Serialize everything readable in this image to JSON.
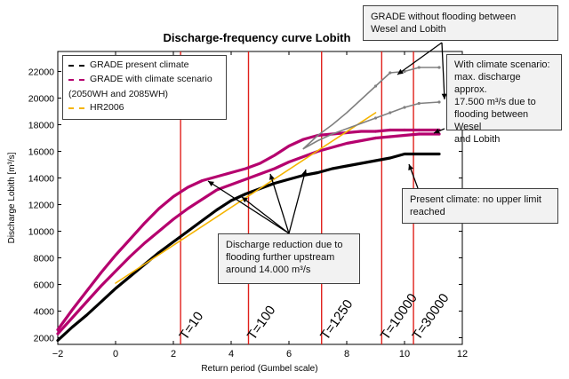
{
  "chart_data": {
    "type": "line",
    "title": "Discharge-frequency curve Lobith",
    "xlabel": "Return period (Gumbel scale)",
    "ylabel": "Discharge Lobith [m³/s]",
    "xlim": [
      -2,
      12
    ],
    "ylim": [
      1500,
      23500
    ],
    "xticks": [
      -2,
      0,
      2,
      4,
      6,
      8,
      10,
      12
    ],
    "xtick_labels": [
      "−2",
      "0",
      "2",
      "4",
      "6",
      "8",
      "10",
      "12"
    ],
    "yticks": [
      2000,
      4000,
      6000,
      8000,
      10000,
      12000,
      14000,
      16000,
      18000,
      20000,
      22000
    ],
    "grid": false,
    "legend_position": "top-left",
    "series": [
      {
        "name": "GRADE present climate",
        "color": "#000000",
        "dashed": false,
        "x": [
          -2,
          -1.5,
          -1,
          -0.5,
          0,
          0.5,
          1,
          1.5,
          2,
          2.5,
          3,
          3.5,
          4,
          4.5,
          5,
          5.5,
          6,
          6.5,
          7,
          7.5,
          8,
          8.5,
          9,
          9.5,
          10,
          10.5,
          11.2
        ],
        "y": [
          1800,
          2800,
          3700,
          4700,
          5700,
          6600,
          7500,
          8400,
          9200,
          10000,
          10800,
          11600,
          12300,
          12800,
          13200,
          13600,
          13900,
          14200,
          14400,
          14700,
          14900,
          15100,
          15300,
          15500,
          15800,
          15800,
          15800
        ]
      },
      {
        "name": "GRADE with climate scenario (2050WH and 2085WH)",
        "color": "#b5006e",
        "dashed": false,
        "x": [
          -2,
          -1.5,
          -1,
          -0.5,
          0,
          0.5,
          1,
          1.5,
          2,
          2.5,
          3,
          3.5,
          4,
          4.5,
          5,
          5.5,
          6,
          6.5,
          7,
          7.5,
          8,
          8.5,
          9,
          9.5,
          10,
          10.5,
          11.2
        ],
        "y": [
          2300,
          3500,
          4700,
          5900,
          7000,
          8100,
          9100,
          10000,
          10900,
          11700,
          12400,
          13100,
          13500,
          13900,
          14300,
          14700,
          15200,
          15600,
          16000,
          16300,
          16600,
          16800,
          17000,
          17100,
          17200,
          17300,
          17300
        ]
      },
      {
        "name": "",
        "color": "#b5006e",
        "dashed": false,
        "x": [
          -2,
          -1.5,
          -1,
          -0.5,
          0,
          0.5,
          1,
          1.5,
          2,
          2.5,
          3,
          3.5,
          4,
          4.5,
          5,
          5.5,
          6,
          6.5,
          7,
          7.5,
          8,
          8.5,
          9,
          9.5,
          10,
          10.5,
          11.2
        ],
        "y": [
          2600,
          4100,
          5500,
          6900,
          8200,
          9400,
          10600,
          11700,
          12600,
          13300,
          13800,
          14100,
          14400,
          14700,
          15100,
          15700,
          16400,
          16900,
          17200,
          17300,
          17400,
          17500,
          17500,
          17600,
          17600,
          17600,
          17600
        ]
      },
      {
        "name": "HR2006",
        "color": "#f5b400",
        "dashed": false,
        "x": [
          0,
          9
        ],
        "y": [
          6100,
          18900
        ]
      },
      {
        "name": "",
        "color": "#808080",
        "dashed": false,
        "x": [
          6.5,
          7,
          7.5,
          8,
          8.5,
          9,
          9.5,
          10,
          10.5,
          11.2
        ],
        "y": [
          16200,
          17200,
          18000,
          18900,
          19900,
          20900,
          21900,
          22000,
          22300,
          22300
        ]
      },
      {
        "name": "",
        "color": "#808080",
        "dashed": false,
        "x": [
          6.5,
          7,
          7.5,
          8,
          8.5,
          9,
          9.5,
          10,
          10.5,
          11.2
        ],
        "y": [
          16200,
          16800,
          17300,
          17700,
          18100,
          18500,
          18900,
          19300,
          19600,
          19700
        ]
      }
    ],
    "return_periods": [
      {
        "label": "T=10",
        "x": 2.25
      },
      {
        "label": "T=100",
        "x": 4.6
      },
      {
        "label": "T=1250",
        "x": 7.13
      },
      {
        "label": "T=10000",
        "x": 9.21
      },
      {
        "label": "T=30000",
        "x": 10.31
      }
    ],
    "legend": [
      {
        "label": "GRADE present climate",
        "color": "#000000"
      },
      {
        "label": "GRADE with climate scenario",
        "label2": "(2050WH and 2085WH)",
        "color": "#b5006e"
      },
      {
        "label": "HR2006",
        "color": "#f5b400"
      }
    ],
    "annotations": {
      "without_flooding": {
        "line1": "GRADE without flooding between",
        "line2": "Wesel and Lobith"
      },
      "climate_scenario": {
        "line1": "With climate scenario:",
        "line2": "max. discharge  approx.",
        "line3": "17.500 m³/s due to",
        "line4": "flooding between Wesel",
        "line5": "and Lobith"
      },
      "present_climate": {
        "line1": "Present climate:  no  upper limit",
        "line2": "reached"
      },
      "reduction": {
        "line1": "Discharge reduction due to",
        "line2": "flooding further upstream",
        "line3": "around 14.000 m³/s"
      }
    }
  }
}
